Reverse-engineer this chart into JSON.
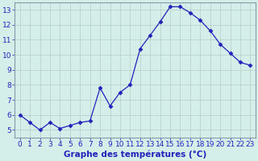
{
  "x": [
    0,
    1,
    2,
    3,
    4,
    5,
    6,
    7,
    8,
    9,
    10,
    11,
    12,
    13,
    14,
    15,
    16,
    17,
    18,
    19,
    20,
    21,
    22,
    23
  ],
  "y": [
    6.0,
    5.5,
    5.0,
    5.5,
    5.1,
    5.3,
    5.5,
    5.6,
    7.8,
    6.6,
    7.5,
    8.0,
    10.4,
    11.3,
    12.2,
    13.2,
    13.2,
    12.8,
    12.3,
    11.6,
    10.7,
    10.1,
    9.5,
    9.3
  ],
  "line_color": "#2222bb",
  "marker": "D",
  "marker_size": 2.5,
  "bg_color": "#d4eeea",
  "grid_color": "#b8ccc8",
  "xlabel": "Graphe des températures (°C)",
  "xlim": [
    -0.5,
    23.5
  ],
  "ylim": [
    4.5,
    13.5
  ],
  "yticks": [
    5,
    6,
    7,
    8,
    9,
    10,
    11,
    12,
    13
  ],
  "xtick_labels": [
    "0",
    "1",
    "2",
    "3",
    "4",
    "5",
    "6",
    "7",
    "8",
    "9",
    "10",
    "11",
    "12",
    "13",
    "14",
    "15",
    "16",
    "17",
    "18",
    "19",
    "20",
    "21",
    "22",
    "23"
  ],
  "xlabel_fontsize": 7.5,
  "tick_fontsize": 6.5,
  "spine_color": "#8899aa",
  "axis_bar_color": "#3355bb",
  "axis_bar_height": 12
}
